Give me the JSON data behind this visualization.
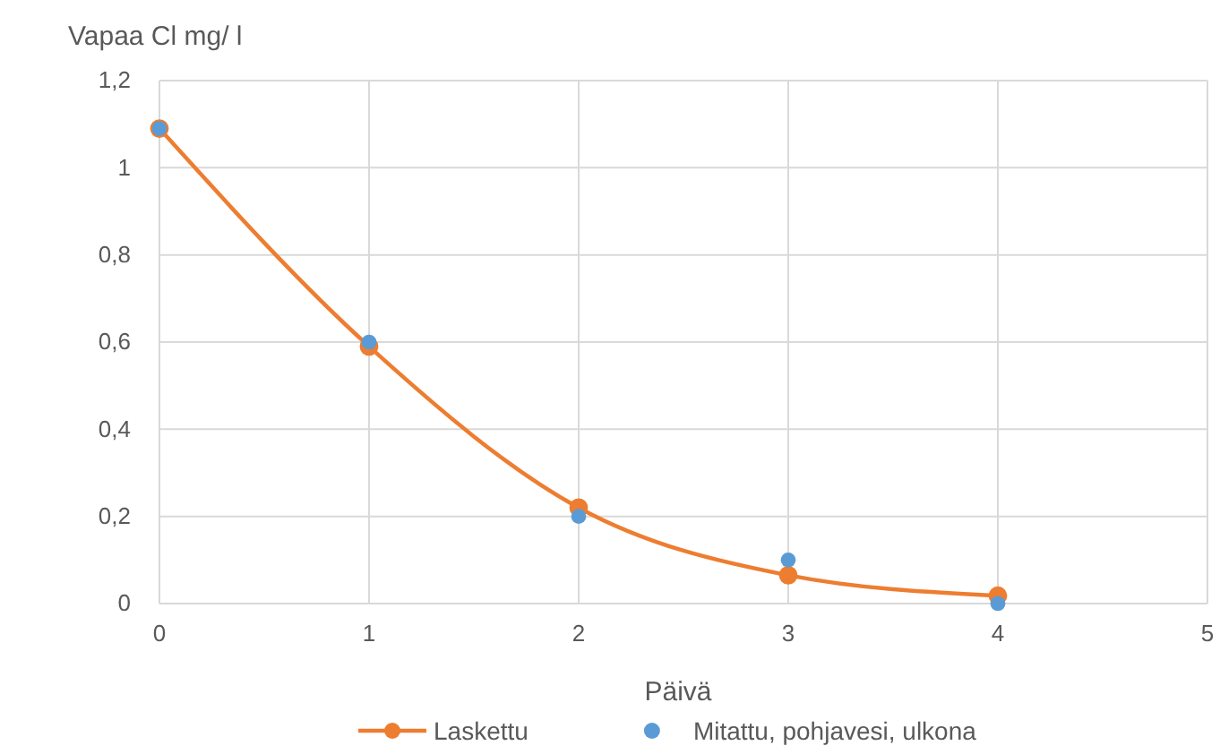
{
  "chart_data": {
    "type": "line",
    "ylabel": "Vapaa Cl mg/ l",
    "xlabel": "Päivä",
    "x": [
      0,
      1,
      2,
      3,
      4
    ],
    "series": [
      {
        "name": "Laskettu",
        "color": "#ed7d31",
        "values": [
          1.09,
          0.59,
          0.22,
          0.065,
          0.018
        ]
      },
      {
        "name": "Mitattu, pohjavesi, ulkona",
        "type": "scatter",
        "color": "#5b9bd5",
        "values": [
          1.09,
          0.6,
          0.2,
          0.1,
          0
        ]
      }
    ],
    "xlim": [
      0,
      5
    ],
    "xticks": [
      0,
      1,
      2,
      3,
      4,
      5
    ],
    "ylim": [
      0,
      1.2
    ],
    "yticks": [
      0,
      {
        "value": 0.2,
        "label": "0,2"
      },
      {
        "value": 0.4,
        "label": "0,4"
      },
      {
        "value": 0.6,
        "label": "0,6"
      },
      {
        "value": 0.8,
        "label": "0,8"
      },
      1,
      {
        "value": 1.2,
        "label": "1,2"
      }
    ],
    "grid": true,
    "legend": "bottom",
    "marker": "circle",
    "line_style": "solid"
  }
}
